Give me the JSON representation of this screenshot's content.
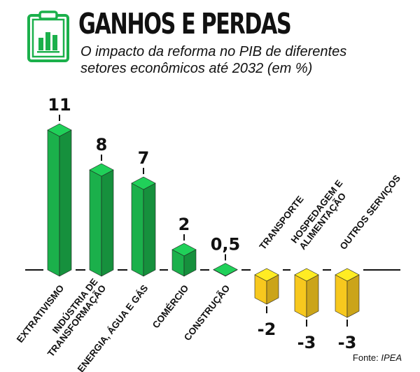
{
  "header": {
    "title": "GANHOS E PERDAS",
    "subtitle": "O impacto da reforma no PIB de diferentes setores econômicos até 2032 (em %)",
    "icon": "clipboard-chart-icon"
  },
  "footer": {
    "source_prefix": "Fonte: ",
    "source_name": "IPEA"
  },
  "colors": {
    "positive": "#1bb04b",
    "negative": "#f7c81e",
    "text": "#111111",
    "icon": "#1bb04b"
  },
  "chart_data": {
    "type": "bar",
    "title": "GANHOS E PERDAS",
    "subtitle": "O impacto da reforma no PIB de diferentes setores econômicos até 2032 (em %)",
    "categories": [
      "EXTRATIVISMO",
      "INDÚSTRIA DE TRANSFORMAÇÃO",
      "ENERGIA, ÁGUA E GÁS",
      "COMÉRCIO",
      "CONSTRUÇÃO",
      "TRANSPORTE",
      "HOSPEDAGEM E ALIMENTAÇÃO",
      "OUTROS SERVIÇOS"
    ],
    "category_lines": [
      [
        "EXTRATIVISMO"
      ],
      [
        "INDÚSTRIA DE",
        "TRANSFORMAÇÃO"
      ],
      [
        "ENERGIA, ÁGUA E GÁS"
      ],
      [
        "COMÉRCIO"
      ],
      [
        "CONSTRUÇÃO"
      ],
      [
        "TRANSPORTE"
      ],
      [
        "HOSPEDAGEM E",
        "ALIMENTAÇÃO"
      ],
      [
        "OUTROS SERVIÇOS"
      ]
    ],
    "values": [
      11,
      8,
      7,
      2,
      0.5,
      -2,
      -3,
      -3
    ],
    "value_labels": [
      "11",
      "8",
      "7",
      "2",
      "0,5",
      "-2",
      "-3",
      "-3"
    ],
    "source": "Fonte: IPEA",
    "grid": false,
    "legend": "none"
  }
}
